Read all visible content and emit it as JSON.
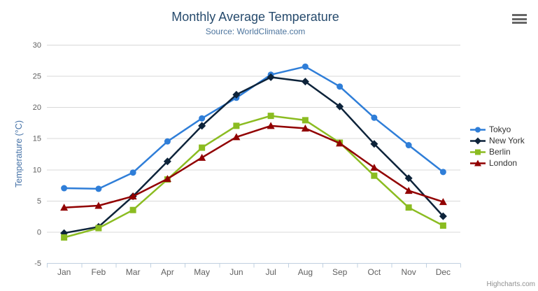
{
  "title": "Monthly Average Temperature",
  "subtitle": "Source: WorldClimate.com",
  "credits": "Highcharts.com",
  "menu_icon": "hamburger-icon",
  "colors": {
    "title": "#274b6d",
    "subtitle": "#4d759e",
    "axis_title": "#4572a7",
    "tick_label": "#606060",
    "grid": "#d8d8d8",
    "axis_line": "#c0d0e0",
    "legend_text": "#333333",
    "credits_text": "#909090"
  },
  "chart_data": {
    "type": "line",
    "title": "Monthly Average Temperature",
    "subtitle": "Source: WorldClimate.com",
    "xlabel": "",
    "ylabel": "Temperature (°C)",
    "ylim": [
      -5,
      30
    ],
    "yticks": [
      -5,
      0,
      5,
      10,
      15,
      20,
      25,
      30
    ],
    "grid": true,
    "legend_position": "right",
    "categories": [
      "Jan",
      "Feb",
      "Mar",
      "Apr",
      "May",
      "Jun",
      "Jul",
      "Aug",
      "Sep",
      "Oct",
      "Nov",
      "Dec"
    ],
    "series": [
      {
        "name": "Tokyo",
        "color": "#2f7ed8",
        "marker": "circle",
        "values": [
          7.0,
          6.9,
          9.5,
          14.5,
          18.2,
          21.5,
          25.2,
          26.5,
          23.3,
          18.3,
          13.9,
          9.6
        ]
      },
      {
        "name": "New York",
        "color": "#0d233a",
        "marker": "diamond",
        "values": [
          -0.2,
          0.8,
          5.7,
          11.3,
          17.0,
          22.0,
          24.8,
          24.1,
          20.1,
          14.1,
          8.6,
          2.5
        ]
      },
      {
        "name": "Berlin",
        "color": "#8bbc21",
        "marker": "square",
        "values": [
          -0.9,
          0.6,
          3.5,
          8.4,
          13.5,
          17.0,
          18.6,
          17.9,
          14.3,
          9.0,
          3.9,
          1.0
        ]
      },
      {
        "name": "London",
        "color": "#910000",
        "marker": "triangle",
        "values": [
          3.9,
          4.2,
          5.7,
          8.5,
          11.9,
          15.2,
          17.0,
          16.6,
          14.2,
          10.3,
          6.6,
          4.8
        ]
      }
    ]
  }
}
